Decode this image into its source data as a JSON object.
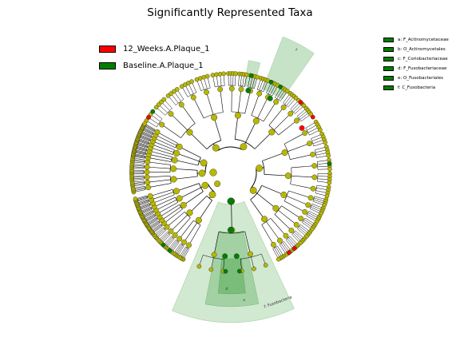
{
  "title": "Significantly Represented Taxa",
  "groups": [
    {
      "name": "12_Weeks.A.Plaque_1",
      "color": "#ff0000"
    },
    {
      "name": "Baseline.A.Plaque_1",
      "color": "#008000"
    }
  ],
  "taxa_key": [
    {
      "label": "a: F_Actinomycetaceae",
      "color": "#008000"
    },
    {
      "label": "b: O_Actinomycetales",
      "color": "#008000"
    },
    {
      "label": "c: F_Coriobacteriaceae",
      "color": "#008000"
    },
    {
      "label": "d: F_Fusobacteriaceae",
      "color": "#008000"
    },
    {
      "label": "e: O_Fusobacteriales",
      "color": "#008000"
    },
    {
      "label": "f: C_Fusobacteria",
      "color": "#008000"
    }
  ],
  "clade_labels": {
    "c": "c",
    "f": "f: Fusobacteria",
    "e": "e",
    "d": "d"
  },
  "colors": {
    "neutral": "#b8b800",
    "enriched_12_weeks": "#ff0000",
    "enriched_baseline": "#008000"
  }
}
